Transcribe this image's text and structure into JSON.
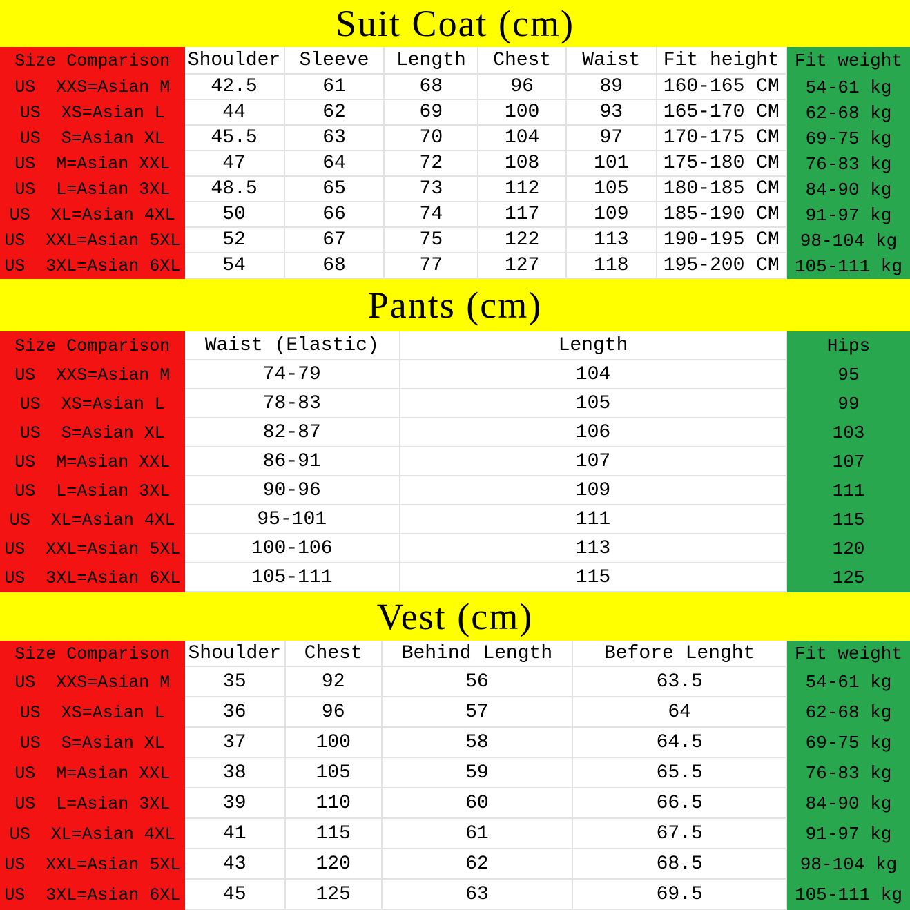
{
  "colors": {
    "title_band_yellow": "#ffff00",
    "size_column_red": "#f31313",
    "accent_column_green": "#29a74f",
    "grid_line": "#e2e2e2",
    "text": "#000000"
  },
  "chart_data": [
    {
      "type": "table",
      "title": "Suit Coat (cm)",
      "headers": [
        "Size Comparison",
        "Shoulder",
        "Sleeve",
        "Length",
        "Chest",
        "Waist",
        "Fit height",
        "Fit weight"
      ],
      "rows": [
        [
          "US  XXS=Asian M",
          "42.5",
          "61",
          "68",
          "96",
          "89",
          "160-165 CM",
          "54-61 kg"
        ],
        [
          "US  XS=Asian L",
          "44",
          "62",
          "69",
          "100",
          "93",
          "165-170 CM",
          "62-68 kg"
        ],
        [
          "US  S=Asian XL",
          "45.5",
          "63",
          "70",
          "104",
          "97",
          "170-175 CM",
          "69-75 kg"
        ],
        [
          "US  M=Asian XXL",
          "47",
          "64",
          "72",
          "108",
          "101",
          "175-180 CM",
          "76-83 kg"
        ],
        [
          "US  L=Asian 3XL",
          "48.5",
          "65",
          "73",
          "112",
          "105",
          "180-185 CM",
          "84-90 kg"
        ],
        [
          "US  XL=Asian 4XL",
          "50",
          "66",
          "74",
          "117",
          "109",
          "185-190 CM",
          "91-97 kg"
        ],
        [
          "US  XXL=Asian 5XL",
          "52",
          "67",
          "75",
          "122",
          "113",
          "190-195 CM",
          "98-104 kg"
        ],
        [
          "US  3XL=Asian 6XL",
          "54",
          "68",
          "77",
          "127",
          "118",
          "195-200 CM",
          "105-111 kg"
        ]
      ]
    },
    {
      "type": "table",
      "title": "Pants (cm)",
      "headers": [
        "Size Comparison",
        "Waist (Elastic)",
        "Length",
        "Hips"
      ],
      "rows": [
        [
          "US  XXS=Asian M",
          "74-79",
          "104",
          "95"
        ],
        [
          "US  XS=Asian L",
          "78-83",
          "105",
          "99"
        ],
        [
          "US  S=Asian XL",
          "82-87",
          "106",
          "103"
        ],
        [
          "US  M=Asian XXL",
          "86-91",
          "107",
          "107"
        ],
        [
          "US  L=Asian 3XL",
          "90-96",
          "109",
          "111"
        ],
        [
          "US  XL=Asian 4XL",
          "95-101",
          "111",
          "115"
        ],
        [
          "US  XXL=Asian 5XL",
          "100-106",
          "113",
          "120"
        ],
        [
          "US  3XL=Asian 6XL",
          "105-111",
          "115",
          "125"
        ]
      ]
    },
    {
      "type": "table",
      "title": "Vest (cm)",
      "headers": [
        "Size Comparison",
        "Shoulder",
        "Chest",
        "Behind Length",
        "Before Lenght",
        "Fit weight"
      ],
      "rows": [
        [
          "US  XXS=Asian M",
          "35",
          "92",
          "56",
          "63.5",
          "54-61 kg"
        ],
        [
          "US  XS=Asian L",
          "36",
          "96",
          "57",
          "64",
          "62-68 kg"
        ],
        [
          "US  S=Asian XL",
          "37",
          "100",
          "58",
          "64.5",
          "69-75 kg"
        ],
        [
          "US  M=Asian XXL",
          "38",
          "105",
          "59",
          "65.5",
          "76-83 kg"
        ],
        [
          "US  L=Asian 3XL",
          "39",
          "110",
          "60",
          "66.5",
          "84-90 kg"
        ],
        [
          "US  XL=Asian 4XL",
          "41",
          "115",
          "61",
          "67.5",
          "91-97 kg"
        ],
        [
          "US  XXL=Asian 5XL",
          "43",
          "120",
          "62",
          "68.5",
          "98-104 kg"
        ],
        [
          "US  3XL=Asian 6XL",
          "45",
          "125",
          "63",
          "69.5",
          "105-111 kg"
        ]
      ]
    }
  ]
}
